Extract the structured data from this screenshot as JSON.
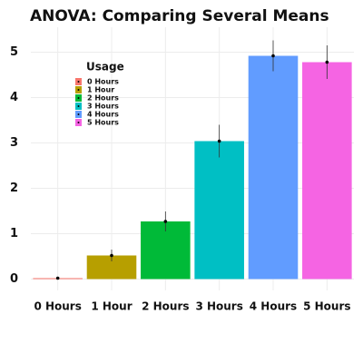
{
  "chart_data": {
    "type": "bar",
    "title": "ANOVA: Comparing Several Means",
    "categories": [
      "0 Hours",
      "1 Hour",
      "2 Hours",
      "3 Hours",
      "4 Hours",
      "5 Hours"
    ],
    "values": [
      0.02,
      0.52,
      1.27,
      3.04,
      4.92,
      4.78
    ],
    "errors": [
      0.01,
      0.13,
      0.22,
      0.36,
      0.34,
      0.37
    ],
    "colors": [
      "#F8766D",
      "#B79F00",
      "#00BA38",
      "#00BFC4",
      "#619CFF",
      "#F564E3"
    ],
    "legend_title": "Usage",
    "ylim": [
      -0.25,
      5.55
    ],
    "yticks": [
      0,
      1,
      2,
      3,
      4,
      5
    ],
    "grid": true
  }
}
